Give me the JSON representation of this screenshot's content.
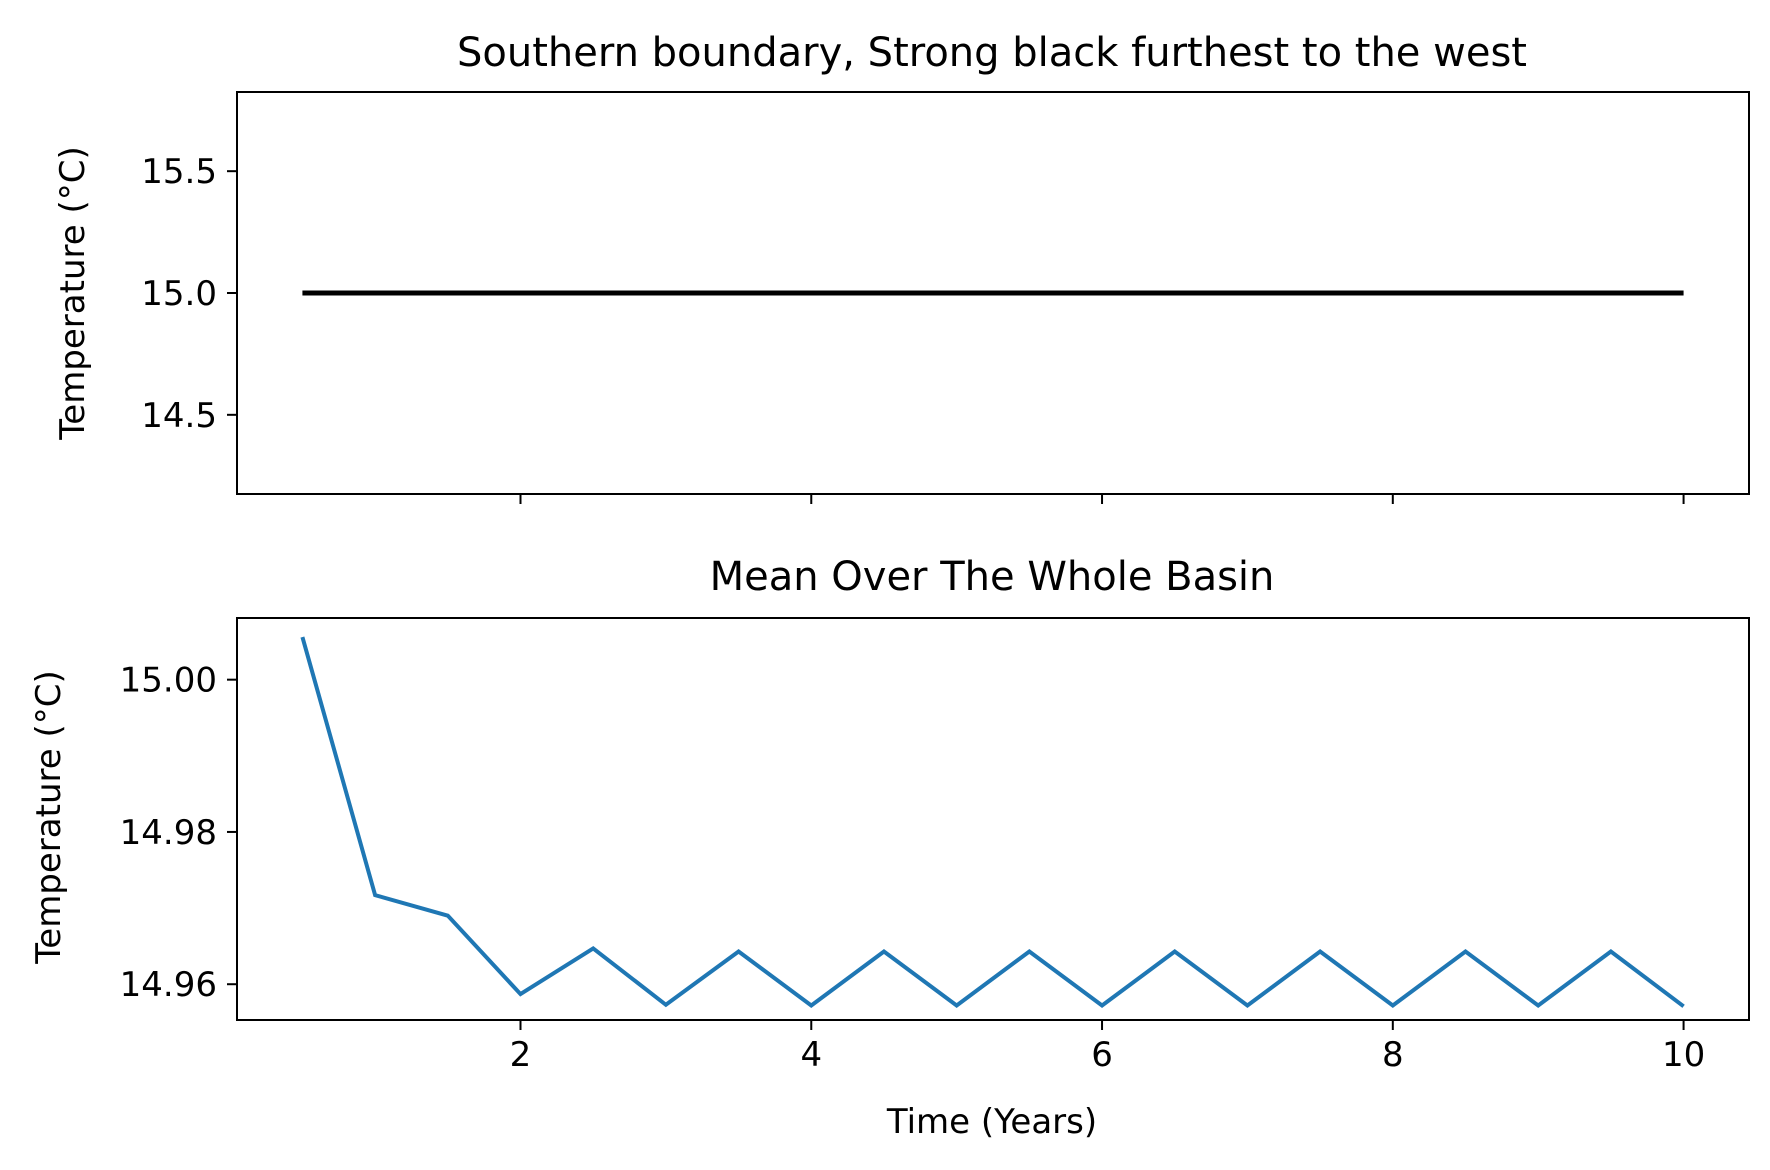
{
  "chart_data": [
    {
      "type": "line",
      "title": "Southern boundary, Strong black furthest to the west",
      "xlabel": "",
      "ylabel": "Temperature (°C)",
      "xlim": [
        0.05,
        10.45
      ],
      "ylim": [
        14.175,
        15.825
      ],
      "xticks": [
        2,
        4,
        6,
        8,
        10
      ],
      "xtick_labels_shown": false,
      "yticks": [
        14.5,
        15.0,
        15.5
      ],
      "ytick_labels": [
        "14.5",
        "15.0",
        "15.5"
      ],
      "grid": false,
      "series": [
        {
          "color": "#000000",
          "x": [
            0.5,
            10.0
          ],
          "y": [
            15.0,
            15.0
          ]
        }
      ]
    },
    {
      "type": "line",
      "title": "Mean Over The Whole Basin",
      "xlabel": "Time (Years)",
      "ylabel": "Temperature (°C)",
      "xlim": [
        0.05,
        10.45
      ],
      "ylim": [
        14.9553,
        15.0081
      ],
      "xticks": [
        2,
        4,
        6,
        8,
        10
      ],
      "xtick_labels": [
        "2",
        "4",
        "6",
        "8",
        "10"
      ],
      "yticks": [
        14.96,
        14.98,
        15.0
      ],
      "ytick_labels": [
        "14.96",
        "14.98",
        "15.00"
      ],
      "grid": false,
      "series": [
        {
          "color": "#1f77b4",
          "x": [
            0.5,
            1.0,
            1.5,
            2.0,
            2.5,
            3.0,
            3.5,
            4.0,
            4.5,
            5.0,
            5.5,
            6.0,
            6.5,
            7.0,
            7.5,
            8.0,
            8.5,
            9.0,
            9.5,
            10.0
          ],
          "y": [
            15.0056,
            14.9717,
            14.969,
            14.9587,
            14.9647,
            14.9573,
            14.9643,
            14.9572,
            14.9643,
            14.9572,
            14.9643,
            14.9572,
            14.9643,
            14.9572,
            14.9643,
            14.9572,
            14.9643,
            14.9572,
            14.9643,
            14.9571
          ]
        }
      ]
    }
  ]
}
